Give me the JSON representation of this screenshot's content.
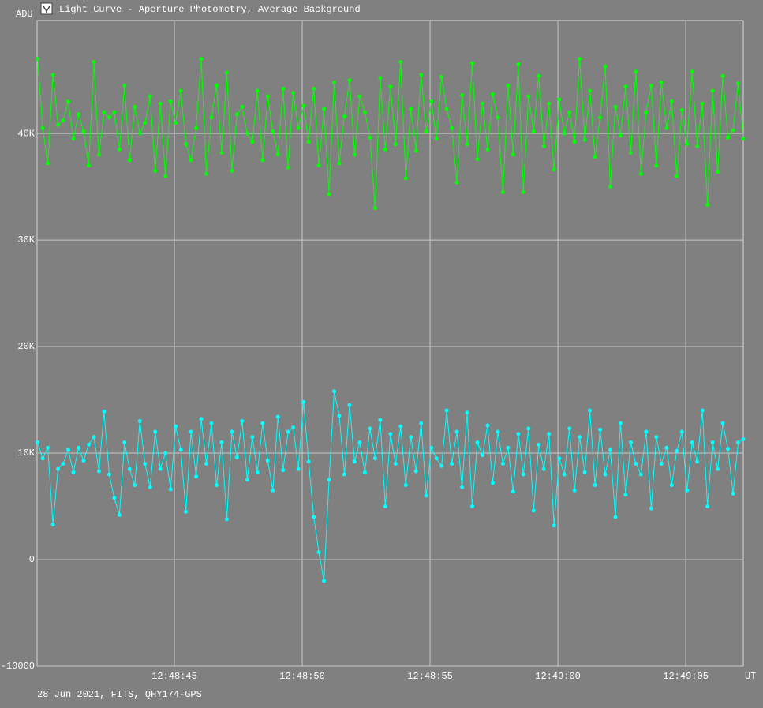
{
  "chart_data": {
    "type": "line",
    "title": "Light Curve - Aperture Photometry, Average Background",
    "y_label": "ADU",
    "x_label": "UT",
    "footer": "28 Jun 2021, FITS, QHY174-GPS",
    "xlim": [
      39.63,
      67.25
    ],
    "ylim": [
      -10000,
      50600
    ],
    "xticks": [
      {
        "value": 45,
        "label": "12:48:45"
      },
      {
        "value": 50,
        "label": "12:48:50"
      },
      {
        "value": 55,
        "label": "12:48:55"
      },
      {
        "value": 60,
        "label": "12:49:00"
      },
      {
        "value": 65,
        "label": "12:49:05"
      }
    ],
    "yticks": [
      -10000,
      0,
      {
        "value": 10000,
        "label": "10K"
      },
      {
        "value": 20000,
        "label": "20K"
      },
      {
        "value": 30000,
        "label": "30K"
      },
      {
        "value": 40000,
        "label": "40K"
      }
    ],
    "grid": true,
    "x": [
      39.65,
      39.85,
      40.05,
      40.25,
      40.45,
      40.65,
      40.85,
      41.05,
      41.25,
      41.45,
      41.65,
      41.85,
      42.05,
      42.25,
      42.45,
      42.65,
      42.85,
      43.05,
      43.25,
      43.45,
      43.65,
      43.85,
      44.05,
      44.25,
      44.45,
      44.65,
      44.85,
      45.05,
      45.25,
      45.45,
      45.65,
      45.85,
      46.05,
      46.25,
      46.45,
      46.65,
      46.85,
      47.05,
      47.25,
      47.45,
      47.65,
      47.85,
      48.05,
      48.25,
      48.45,
      48.65,
      48.85,
      49.05,
      49.25,
      49.45,
      49.65,
      49.85,
      50.05,
      50.25,
      50.45,
      50.65,
      50.85,
      51.05,
      51.25,
      51.45,
      51.65,
      51.85,
      52.05,
      52.25,
      52.45,
      52.65,
      52.85,
      53.05,
      53.25,
      53.45,
      53.65,
      53.85,
      54.05,
      54.25,
      54.45,
      54.65,
      54.85,
      55.05,
      55.25,
      55.45,
      55.65,
      55.85,
      56.05,
      56.25,
      56.45,
      56.65,
      56.85,
      57.05,
      57.25,
      57.45,
      57.65,
      57.85,
      58.05,
      58.25,
      58.45,
      58.65,
      58.85,
      59.05,
      59.25,
      59.45,
      59.65,
      59.85,
      60.05,
      60.25,
      60.45,
      60.65,
      60.85,
      61.05,
      61.25,
      61.45,
      61.65,
      61.85,
      62.05,
      62.25,
      62.45,
      62.65,
      62.85,
      63.05,
      63.25,
      63.45,
      63.65,
      63.85,
      64.05,
      64.25,
      64.45,
      64.65,
      64.85,
      65.05,
      65.25,
      65.45,
      65.65,
      65.85,
      66.05,
      66.25,
      66.45,
      66.65,
      66.85,
      67.05,
      67.25
    ],
    "series": [
      {
        "color": "#00ff00",
        "values": [
          47000,
          40500,
          37200,
          45500,
          40800,
          41200,
          43000,
          39500,
          41800,
          40200,
          37000,
          46700,
          38000,
          42000,
          41500,
          42000,
          38500,
          44500,
          37500,
          42500,
          40000,
          41000,
          43500,
          36500,
          42800,
          36000,
          43000,
          41000,
          44000,
          39000,
          37500,
          40500,
          47000,
          36200,
          41500,
          44500,
          38200,
          45700,
          36500,
          41800,
          42500,
          40000,
          39200,
          44000,
          37500,
          43500,
          40200,
          38000,
          44200,
          36800,
          43800,
          40500,
          42600,
          39200,
          44200,
          37000,
          42300,
          34300,
          44800,
          37200,
          41600,
          45000,
          38000,
          43500,
          42000,
          39600,
          33000,
          45200,
          38500,
          44400,
          39000,
          46700,
          35800,
          42300,
          38400,
          45500,
          40200,
          43000,
          39500,
          45300,
          42300,
          40500,
          35400,
          43600,
          39000,
          46600,
          37600,
          42800,
          38500,
          43700,
          41500,
          34500,
          44500,
          38000,
          46500,
          34500,
          43500,
          40200,
          45400,
          38800,
          42800,
          36600,
          43200,
          40000,
          42000,
          39200,
          47000,
          39400,
          44000,
          37800,
          41500,
          46300,
          35000,
          42500,
          39800,
          44400,
          38200,
          45800,
          36200,
          42000,
          44500,
          37000,
          44800,
          40500,
          43000,
          36000,
          42200,
          39000,
          45800,
          38800,
          42800,
          33300,
          44000,
          36400,
          45400,
          39600,
          40300,
          44700,
          39500
        ]
      },
      {
        "color": "#00ffff",
        "values": [
          11000,
          9500,
          10500,
          3300,
          8500,
          9000,
          10300,
          8200,
          10500,
          9300,
          10800,
          11500,
          8300,
          13900,
          8000,
          5800,
          4200,
          11000,
          8500,
          7000,
          13000,
          9000,
          6800,
          12000,
          8500,
          10000,
          6600,
          12500,
          10300,
          4500,
          12000,
          7800,
          13200,
          9000,
          12800,
          7000,
          11000,
          3800,
          12000,
          9600,
          13000,
          7500,
          11500,
          8200,
          12800,
          9300,
          6500,
          13400,
          8400,
          12000,
          12400,
          8500,
          14800,
          9200,
          4000,
          700,
          -2000,
          7500,
          15800,
          13500,
          8000,
          14500,
          9200,
          11000,
          8200,
          12300,
          9500,
          13100,
          5000,
          11800,
          9000,
          12500,
          7000,
          11500,
          8300,
          12800,
          6000,
          10500,
          9500,
          8800,
          14000,
          9000,
          12000,
          6800,
          13800,
          5000,
          11000,
          9800,
          12600,
          7200,
          12000,
          9000,
          10500,
          6400,
          11800,
          8000,
          12300,
          4600,
          10800,
          8500,
          11800,
          3200,
          9500,
          8000,
          12300,
          6500,
          11500,
          8200,
          14000,
          7000,
          12200,
          8000,
          10300,
          4000,
          12800,
          6100,
          11000,
          9000,
          8000,
          12000,
          4800,
          11500,
          9000,
          10500,
          7000,
          10200,
          12000,
          6500,
          11000,
          9200,
          14000,
          5000,
          11000,
          8500,
          12800,
          10400,
          6200,
          11000,
          11300
        ]
      }
    ]
  }
}
